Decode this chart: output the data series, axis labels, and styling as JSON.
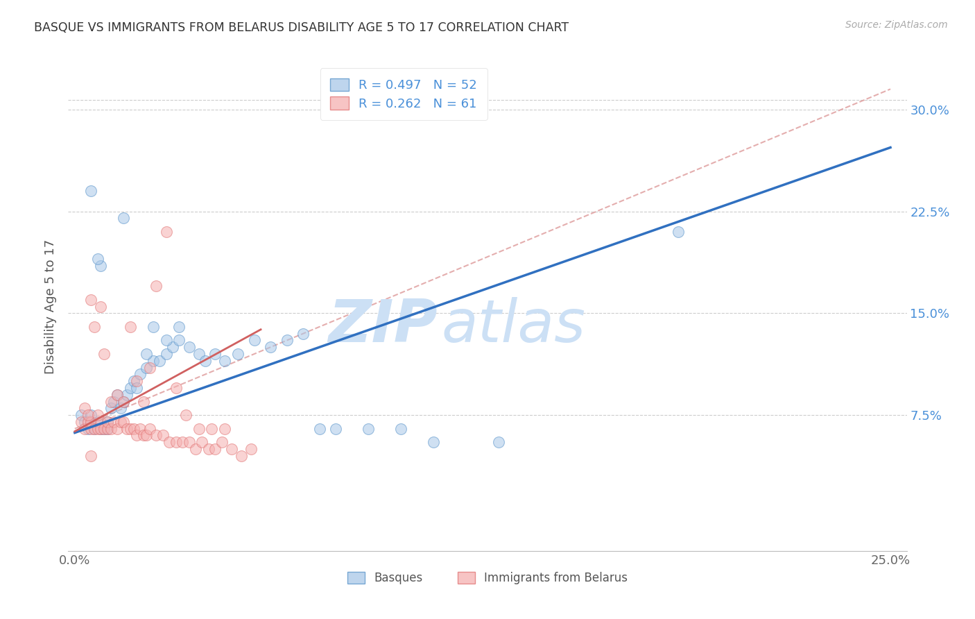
{
  "title": "BASQUE VS IMMIGRANTS FROM BELARUS DISABILITY AGE 5 TO 17 CORRELATION CHART",
  "source": "Source: ZipAtlas.com",
  "ylabel": "Disability Age 5 to 17",
  "xlim": [
    -0.002,
    0.255
  ],
  "ylim": [
    -0.025,
    0.335
  ],
  "blue_R": 0.497,
  "blue_N": 52,
  "pink_R": 0.262,
  "pink_N": 61,
  "blue_color": "#a8c8e8",
  "blue_edge_color": "#5591c8",
  "pink_color": "#f5b0b0",
  "pink_edge_color": "#e07070",
  "blue_line_color": "#3070c0",
  "pink_line_color": "#d06060",
  "diag_line_color": "#e0a0a0",
  "watermark_color": "#cce0f5",
  "axis_label_color": "#555555",
  "right_tick_color": "#4a90d9",
  "title_color": "#333333",
  "source_color": "#aaaaaa",
  "legend_blue_label": "Basques",
  "legend_pink_label": "Immigrants from Belarus",
  "ytick_positions": [
    0.075,
    0.15,
    0.225,
    0.3
  ],
  "ytick_labels": [
    "7.5%",
    "15.0%",
    "22.5%",
    "30.0%"
  ],
  "xtick_positions": [
    0.0,
    0.05,
    0.1,
    0.15,
    0.2,
    0.25
  ],
  "blue_line_x": [
    0.0,
    0.25
  ],
  "blue_line_y": [
    0.062,
    0.272
  ],
  "pink_line_x": [
    0.0,
    0.057
  ],
  "pink_line_y": [
    0.063,
    0.138
  ],
  "diag_line_x": [
    0.0,
    0.25
  ],
  "diag_line_y": [
    0.065,
    0.315
  ],
  "blue_scatter_x": [
    0.002,
    0.003,
    0.004,
    0.005,
    0.005,
    0.006,
    0.007,
    0.008,
    0.009,
    0.01,
    0.01,
    0.011,
    0.012,
    0.013,
    0.014,
    0.015,
    0.016,
    0.017,
    0.018,
    0.019,
    0.02,
    0.022,
    0.024,
    0.026,
    0.028,
    0.03,
    0.032,
    0.035,
    0.038,
    0.04,
    0.043,
    0.046,
    0.05,
    0.055,
    0.06,
    0.065,
    0.07,
    0.075,
    0.08,
    0.09,
    0.1,
    0.11,
    0.13,
    0.185,
    0.024,
    0.028,
    0.032,
    0.008,
    0.005,
    0.007,
    0.015,
    0.022
  ],
  "blue_scatter_y": [
    0.075,
    0.07,
    0.065,
    0.07,
    0.075,
    0.065,
    0.07,
    0.065,
    0.065,
    0.065,
    0.07,
    0.08,
    0.085,
    0.09,
    0.08,
    0.085,
    0.09,
    0.095,
    0.1,
    0.095,
    0.105,
    0.11,
    0.115,
    0.115,
    0.12,
    0.125,
    0.13,
    0.125,
    0.12,
    0.115,
    0.12,
    0.115,
    0.12,
    0.13,
    0.125,
    0.13,
    0.135,
    0.065,
    0.065,
    0.065,
    0.065,
    0.055,
    0.055,
    0.21,
    0.14,
    0.13,
    0.14,
    0.185,
    0.24,
    0.19,
    0.22,
    0.12
  ],
  "pink_scatter_x": [
    0.002,
    0.003,
    0.004,
    0.005,
    0.005,
    0.006,
    0.007,
    0.008,
    0.008,
    0.009,
    0.01,
    0.01,
    0.011,
    0.012,
    0.013,
    0.014,
    0.015,
    0.016,
    0.017,
    0.018,
    0.019,
    0.02,
    0.021,
    0.022,
    0.023,
    0.025,
    0.027,
    0.029,
    0.031,
    0.033,
    0.035,
    0.037,
    0.039,
    0.041,
    0.043,
    0.045,
    0.048,
    0.051,
    0.054,
    0.003,
    0.004,
    0.005,
    0.006,
    0.007,
    0.008,
    0.009,
    0.011,
    0.013,
    0.015,
    0.017,
    0.019,
    0.021,
    0.023,
    0.025,
    0.028,
    0.031,
    0.034,
    0.038,
    0.042,
    0.046,
    0.005
  ],
  "pink_scatter_y": [
    0.07,
    0.065,
    0.07,
    0.065,
    0.07,
    0.065,
    0.065,
    0.07,
    0.065,
    0.065,
    0.065,
    0.07,
    0.065,
    0.07,
    0.065,
    0.07,
    0.07,
    0.065,
    0.065,
    0.065,
    0.06,
    0.065,
    0.06,
    0.06,
    0.065,
    0.06,
    0.06,
    0.055,
    0.055,
    0.055,
    0.055,
    0.05,
    0.055,
    0.05,
    0.05,
    0.055,
    0.05,
    0.045,
    0.05,
    0.08,
    0.075,
    0.16,
    0.14,
    0.075,
    0.155,
    0.12,
    0.085,
    0.09,
    0.085,
    0.14,
    0.1,
    0.085,
    0.11,
    0.17,
    0.21,
    0.095,
    0.075,
    0.065,
    0.065,
    0.065,
    0.045
  ]
}
